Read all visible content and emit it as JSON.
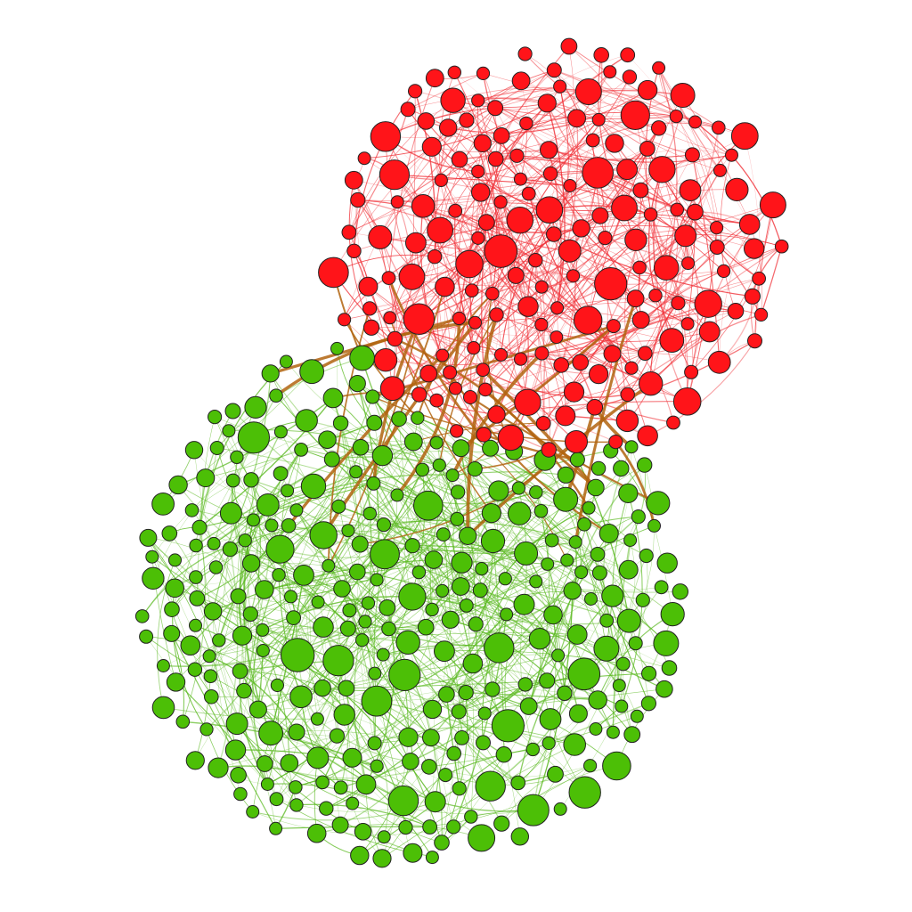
{
  "diagram": {
    "type": "network-graph",
    "communities": [
      {
        "name": "red",
        "color": "#ff1419",
        "edge_color": "#f03037",
        "node_count": 183
      },
      {
        "name": "green",
        "color": "#4cbf06",
        "edge_color": "#58b81d",
        "node_count": 331
      }
    ],
    "bridge_edge_color": "#b2640f",
    "node_outline_color": "#222222",
    "labels_shown": false
  }
}
